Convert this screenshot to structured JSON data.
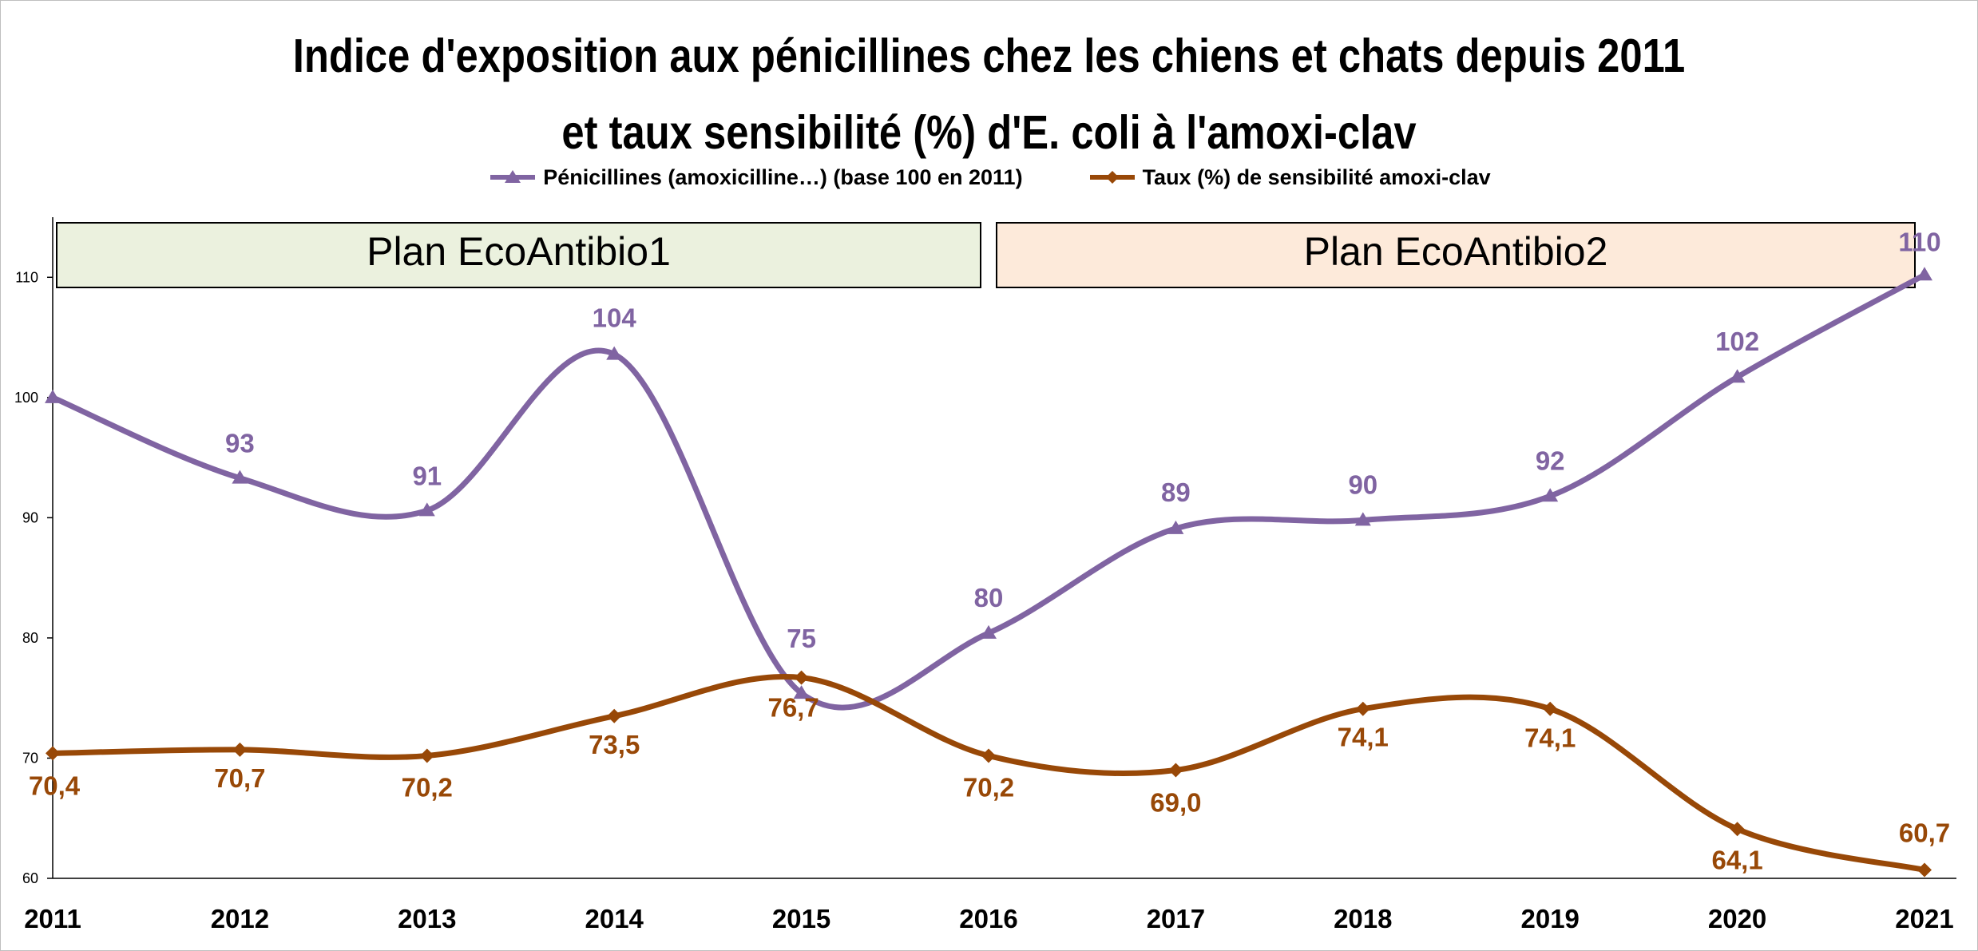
{
  "title_line1": "Indice d'exposition aux pénicillines chez les chiens et chats depuis 2011",
  "title_line2": "et taux sensibilité (%) d'E. coli à l'amoxi-clav",
  "colors": {
    "penicillines": "#8064a2",
    "taux": "#984807",
    "plan1_fill": "#ebf1de",
    "plan2_fill": "#fdeada",
    "axis": "#000000"
  },
  "plans": [
    {
      "label": "Plan EcoAntibio1",
      "from": 2011,
      "to": 2016
    },
    {
      "label": "Plan EcoAntibio2",
      "from": 2016,
      "to": 2021
    }
  ],
  "chart_data": {
    "type": "line",
    "title": "Indice d'exposition aux pénicillines chez les chiens et chats depuis 2011 et taux sensibilité (%) d'E. coli à l'amoxi-clav",
    "x": [
      2011,
      2012,
      2013,
      2014,
      2015,
      2016,
      2017,
      2018,
      2019,
      2020,
      2021
    ],
    "ylim": [
      60,
      115
    ],
    "yticks": [
      60,
      70,
      80,
      90,
      100,
      110
    ],
    "grid": false,
    "legend_position": "top",
    "series": [
      {
        "name": "Pénicillines (amoxicilline…) (base 100 en 2011)",
        "marker": "triangle",
        "values": [
          100,
          93.3,
          90.6,
          103.6,
          75.4,
          80.4,
          89.1,
          89.8,
          91.8,
          101.7,
          110.2
        ],
        "labels": [
          "",
          "93",
          "91",
          "104",
          "75",
          "80",
          "89",
          "90",
          "92",
          "102",
          "110"
        ]
      },
      {
        "name": "Taux (%) de sensibilité amoxi-clav",
        "marker": "diamond",
        "values": [
          70.4,
          70.7,
          70.2,
          73.5,
          76.7,
          70.2,
          69.0,
          74.1,
          74.1,
          64.1,
          60.7
        ],
        "labels": [
          "70,4",
          "70,7",
          "70,2",
          "73,5",
          "76,7",
          "70,2",
          "69,0",
          "74,1",
          "74,1",
          "64,1",
          "60,7"
        ]
      }
    ]
  }
}
